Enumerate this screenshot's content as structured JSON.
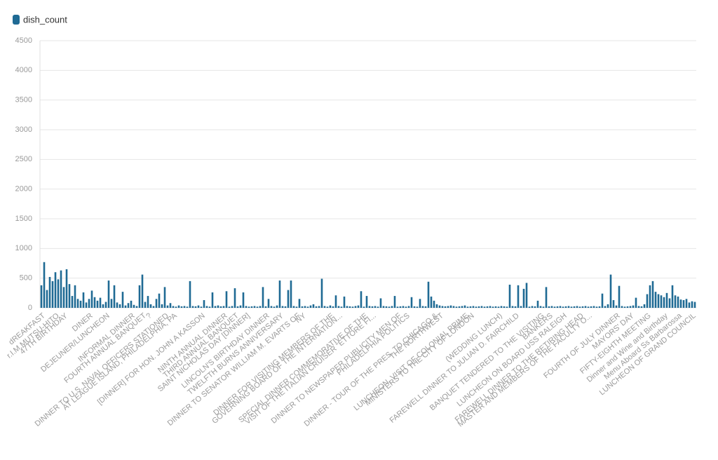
{
  "chart_data": {
    "type": "bar",
    "categories": [
      null,
      "dREAKFAST",
      null,
      null,
      null,
      null,
      "r.I.M.MUTSU-HITO",
      null,
      null,
      "47TH BIRTHDAY",
      null,
      null,
      null,
      null,
      null,
      null,
      null,
      null,
      "DINER",
      null,
      null,
      null,
      null,
      null,
      "DEJEUNER/LUNCHEON",
      null,
      null,
      null,
      null,
      null,
      null,
      null,
      null,
      "INFORMAL DINNER",
      null,
      null,
      null,
      "FOURTH ANNUAL BANQUET",
      null,
      "?",
      null,
      null,
      null,
      null,
      null,
      "DINNER TO U.S. NAVAL OFFICERS STATIONED",
      null,
      null,
      "AT LEAGUE ISLAND, PHILADELPHIA, PA",
      null,
      null,
      null,
      null,
      null,
      null,
      null,
      null,
      null,
      "[DINNER] FOR HON. JOHN A KASSON",
      null,
      null,
      null,
      null,
      null,
      null,
      null,
      "NINTH ANNUAL DINNER",
      null,
      null,
      null,
      "THIRD ANNUAL BANQUET",
      null,
      null,
      null,
      "SAINT NICHOLAS DAY [DINNER]",
      null,
      null,
      null,
      null,
      null,
      null,
      "LINCOLN'S BIRTHDAY DINNER",
      null,
      null,
      null,
      null,
      "TWELFTH BURNS ANNIVERSARY",
      null,
      null,
      null,
      null,
      null,
      "DINNER TO SENATOR WILLIAM M. EVARTS OF",
      null,
      "NY",
      null,
      null,
      null,
      null,
      null,
      null,
      null,
      null,
      null,
      "DINNER FOR VISITING MEMBERS OF THE",
      null,
      null,
      "GOVERNING BOARD OF THE INTERNATION...",
      null,
      null,
      null,
      null,
      null,
      null,
      null,
      null,
      "SPECIAL DINNER COMMEMORATIVE OF THE",
      null,
      null,
      "VISIT OF THE ITALIAN CRUISER “ETTORE FI...",
      null,
      null,
      null,
      null,
      null,
      null,
      null,
      null,
      "DINNER TO NEWSPAPER PUBLICITY MEN OF",
      null,
      null,
      "PHILADELPHIA POLITICS",
      null,
      null,
      null,
      null,
      null,
      null,
      null,
      null,
      null,
      "DINNER - TOUR OF THE PRES. TO CHICAGO &",
      null,
      "THE NORTHWEST",
      null,
      null,
      null,
      null,
      null,
      null,
      null,
      null,
      "LUNCHEON, VISIT OF COLONIAL PRIME",
      null,
      "MINISTERS TO THE CITY OF LONDON",
      null,
      null,
      null,
      null,
      null,
      null,
      null,
      null,
      null,
      "(WEDDING LUNCH)",
      null,
      null,
      null,
      null,
      null,
      "FAREWELL DINNER TO JULIAN D. FAIRCHILD",
      null,
      null,
      null,
      null,
      null,
      null,
      null,
      null,
      "BANQUET TENDERED TO THE VISITING",
      null,
      null,
      "BANKERS",
      null,
      null,
      null,
      null,
      "LUNCHEON ON BOARD USS RALEIGH",
      null,
      null,
      null,
      null,
      null,
      "FAREWELL DINNER TO THE RETIRING HEAD",
      null,
      null,
      "MASTER AND MEMBERS OF THE FACULTY O...",
      null,
      null,
      null,
      null,
      null,
      null,
      null,
      null,
      null,
      "FOURTH OF JULY DINNER",
      null,
      null,
      null,
      null,
      "MAYORS' DAY",
      null,
      null,
      null,
      null,
      null,
      "FIFTY-EIGHTH MEETING",
      null,
      null,
      null,
      null,
      null,
      "Dinner and Wine and Birthday",
      null,
      null,
      null,
      null,
      "Menu Aboard Ss Barbarossa",
      null,
      null,
      null,
      null,
      "LUNCHEON OF GRAND COUNCIL"
    ],
    "series": [
      {
        "name": "dish_count",
        "color": "#1f6a94",
        "values": [
          380,
          770,
          300,
          520,
          450,
          600,
          480,
          630,
          350,
          650,
          400,
          200,
          380,
          150,
          120,
          260,
          90,
          150,
          290,
          180,
          120,
          170,
          60,
          100,
          460,
          150,
          380,
          90,
          60,
          270,
          40,
          80,
          120,
          50,
          30,
          380,
          560,
          100,
          200,
          60,
          30,
          150,
          240,
          60,
          350,
          40,
          80,
          30,
          20,
          40,
          25,
          30,
          20,
          450,
          30,
          25,
          40,
          20,
          130,
          30,
          20,
          260,
          30,
          40,
          25,
          30,
          280,
          20,
          30,
          330,
          25,
          40,
          260,
          30,
          20,
          25,
          30,
          20,
          30,
          350,
          25,
          150,
          30,
          20,
          40,
          460,
          30,
          25,
          300,
          460,
          30,
          20,
          150,
          25,
          30,
          20,
          40,
          60,
          25,
          30,
          490,
          30,
          20,
          40,
          25,
          210,
          30,
          20,
          190,
          30,
          25,
          20,
          30,
          40,
          280,
          20,
          200,
          30,
          25,
          30,
          20,
          160,
          30,
          25,
          20,
          30,
          200,
          20,
          25,
          30,
          20,
          30,
          180,
          25,
          20,
          150,
          30,
          25,
          440,
          190,
          120,
          60,
          40,
          30,
          25,
          30,
          40,
          30,
          20,
          25,
          30,
          40,
          20,
          25,
          30,
          20,
          25,
          30,
          20,
          25,
          30,
          20,
          25,
          20,
          30,
          25,
          20,
          390,
          30,
          25,
          380,
          30,
          320,
          420,
          20,
          30,
          25,
          120,
          30,
          20,
          350,
          25,
          30,
          20,
          25,
          30,
          20,
          25,
          30,
          20,
          25,
          30,
          20,
          25,
          30,
          20,
          25,
          30,
          20,
          25,
          240,
          30,
          60,
          560,
          130,
          40,
          370,
          30,
          20,
          25,
          30,
          40,
          170,
          30,
          25,
          60,
          230,
          380,
          450,
          270,
          230,
          210,
          180,
          250,
          160,
          380,
          210,
          190,
          140,
          130,
          150,
          90,
          110,
          100
        ]
      }
    ],
    "ylim": [
      0,
      4500
    ],
    "yticks": [
      0,
      500,
      1000,
      1500,
      2000,
      2500,
      3000,
      3500,
      4000,
      4500
    ],
    "grid": true
  }
}
